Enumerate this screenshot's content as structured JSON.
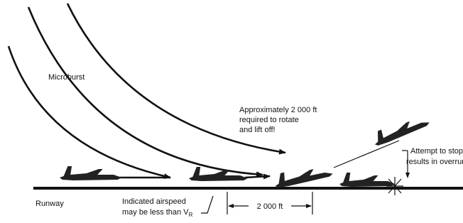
{
  "labels": {
    "microburst": "Microburst",
    "approx": [
      "Approximately 2 000 ft",
      "required to rotate",
      "and lift off!"
    ],
    "attempt": [
      "Attempt to stop",
      "results in overrun"
    ],
    "runway": "Runway",
    "airspeed": [
      "Indicated airspeed",
      "may be less than V"
    ],
    "subscript": "R",
    "distance": "2 000 ft"
  }
}
